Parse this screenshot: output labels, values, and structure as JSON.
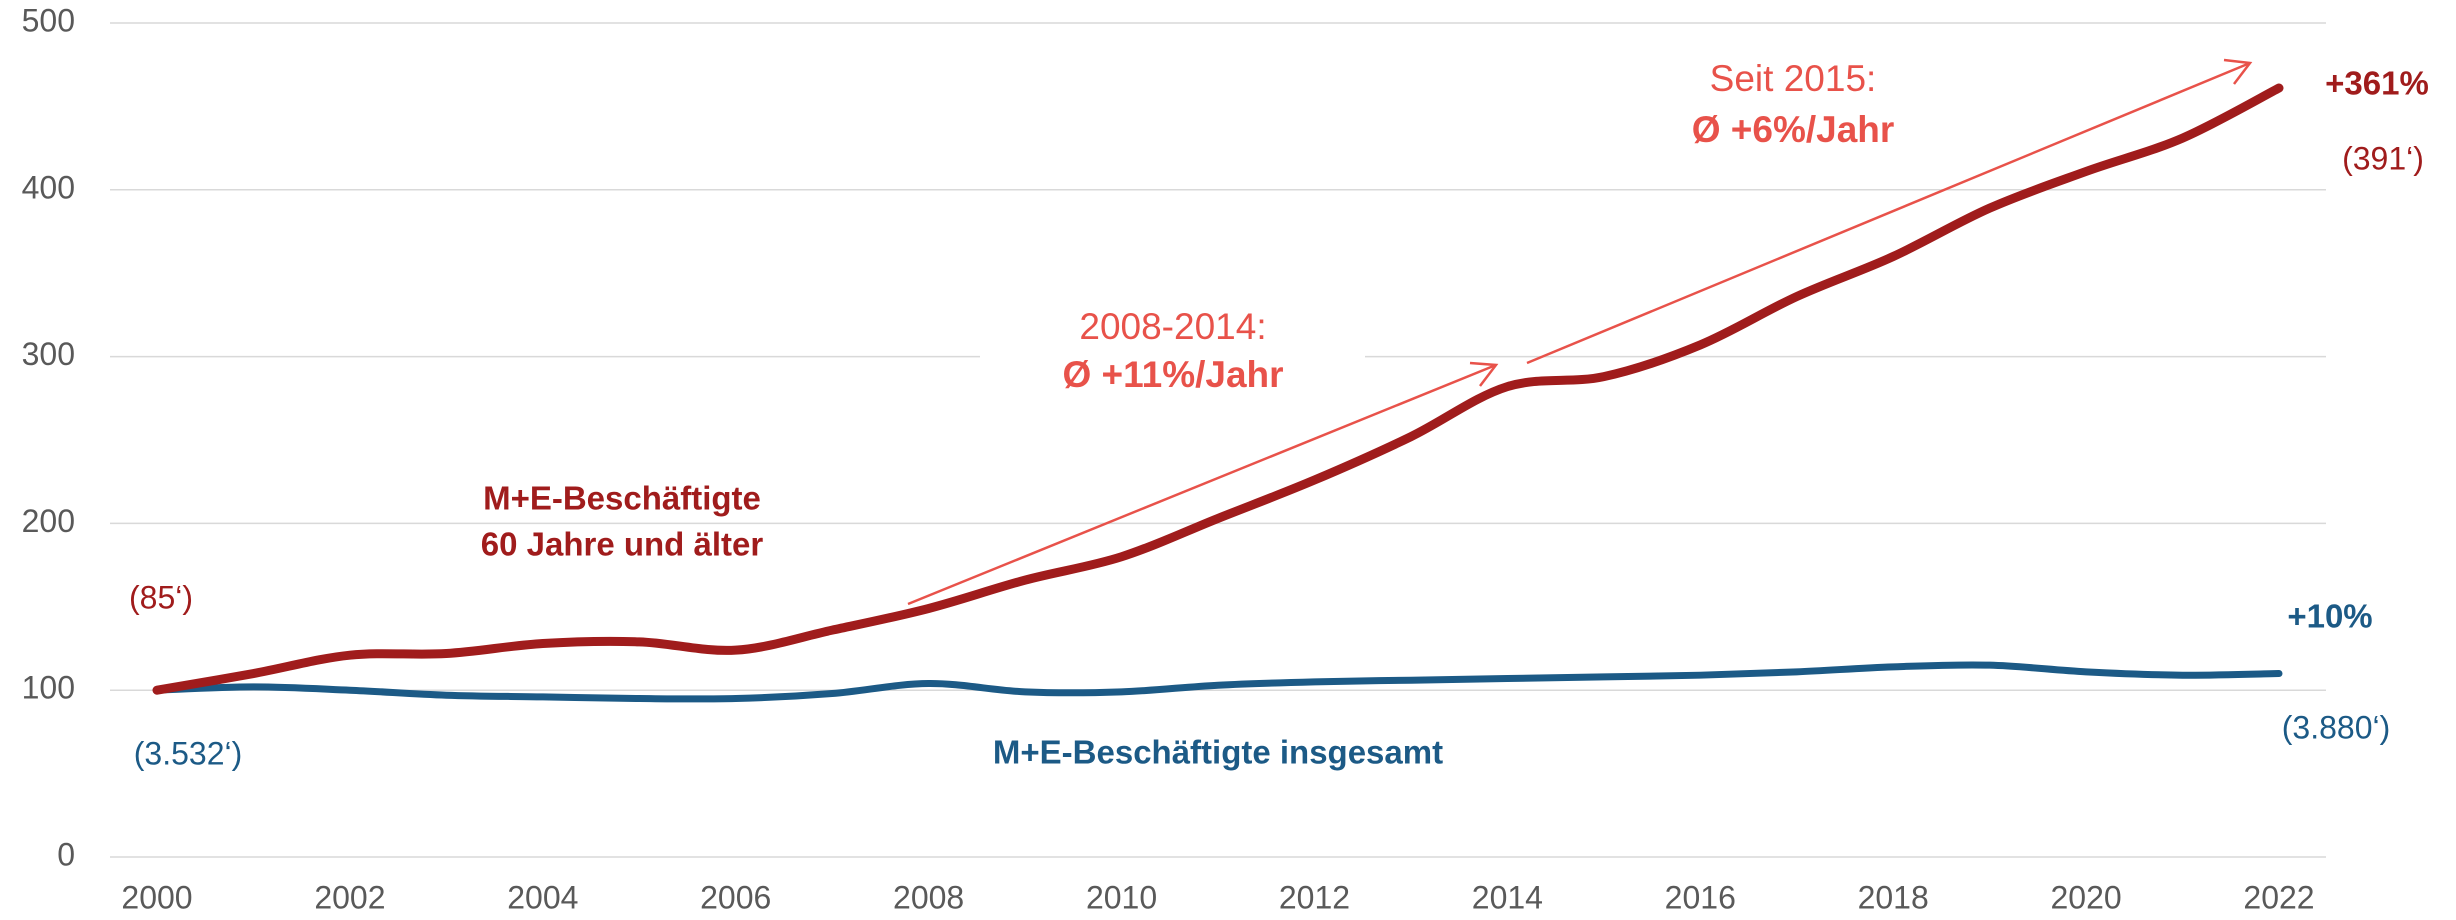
{
  "chart_data": {
    "type": "line",
    "x": [
      2000,
      2001,
      2002,
      2003,
      2004,
      2005,
      2006,
      2007,
      2008,
      2009,
      2010,
      2011,
      2012,
      2013,
      2014,
      2015,
      2016,
      2017,
      2018,
      2019,
      2020,
      2021,
      2022
    ],
    "series": [
      {
        "name": [
          "M+E-Beschäftigte",
          "60 Jahre und älter"
        ],
        "color": "#a01c1c",
        "values": [
          100,
          110,
          121,
          122,
          128,
          129,
          124,
          136,
          149,
          166,
          180,
          203,
          226,
          252,
          282,
          288,
          307,
          336,
          360,
          389,
          411,
          431,
          461
        ]
      },
      {
        "name": "M+E-Beschäftigte insgesamt",
        "color": "#1c5a86",
        "values": [
          100,
          102,
          100,
          97,
          96,
          95,
          95,
          98,
          104,
          99,
          99,
          103,
          105,
          106,
          107,
          108,
          109,
          111,
          114,
          115,
          111,
          109,
          110
        ]
      }
    ],
    "xlim": [
      2000,
      2022
    ],
    "xticks": [
      2000,
      2002,
      2004,
      2006,
      2008,
      2010,
      2012,
      2014,
      2016,
      2018,
      2020,
      2022
    ],
    "ylim": [
      0,
      500
    ],
    "yticks": [
      0,
      100,
      200,
      300,
      400,
      500
    ],
    "grid": true,
    "annotations": {
      "red_end_change": "+361%",
      "red_end_count": "(391‘)",
      "red_start_count": "(85‘)",
      "blue_end_change": "+10%",
      "blue_start_count": "(3.532‘)",
      "blue_end_count": "(3.880‘)",
      "period_1": [
        "2008-2014:",
        "Ø +11%/Jahr"
      ],
      "period_2": [
        "Seit 2015:",
        "Ø +6%/Jahr"
      ],
      "arrow_color": "#e8524a"
    }
  }
}
